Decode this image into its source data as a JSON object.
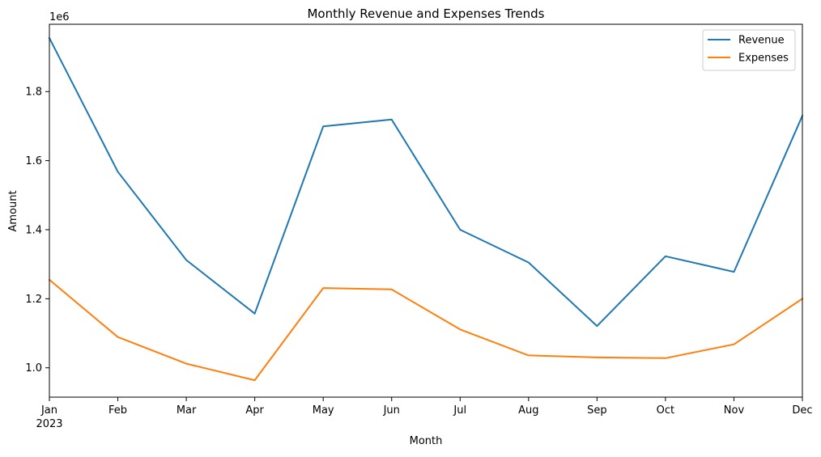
{
  "chart_data": {
    "type": "line",
    "title": "Monthly Revenue and Expenses Trends",
    "xlabel": "Month",
    "ylabel": "Amount",
    "y_offset_label": "1e6",
    "year_label": "2023",
    "categories": [
      "Jan",
      "Feb",
      "Mar",
      "Apr",
      "May",
      "Jun",
      "Jul",
      "Aug",
      "Sep",
      "Oct",
      "Nov",
      "Dec"
    ],
    "yticks": [
      "1.0",
      "1.2",
      "1.4",
      "1.6",
      "1.8"
    ],
    "ytick_values": [
      1.0,
      1.2,
      1.4,
      1.6,
      1.8
    ],
    "ylim": [
      0.915,
      1.995
    ],
    "y_scale_note": "values in millions (x 1e6)",
    "grid": false,
    "legend_position": "top-right",
    "series": [
      {
        "name": "Revenue",
        "color": "#1f77b4",
        "values": [
          1.955,
          1.568,
          1.312,
          1.157,
          1.699,
          1.719,
          1.4,
          1.305,
          1.121,
          1.323,
          1.278,
          1.73
        ]
      },
      {
        "name": "Expenses",
        "color": "#ff7f0e",
        "values": [
          1.255,
          1.089,
          1.012,
          0.964,
          1.231,
          1.227,
          1.111,
          1.036,
          1.03,
          1.028,
          1.068,
          1.2
        ]
      }
    ]
  }
}
